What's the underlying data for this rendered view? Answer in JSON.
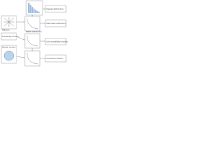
{
  "nodes": [
    {
      "label": "Degree distribution"
    },
    {
      "label": "Network"
    },
    {
      "label": "Fitted distribution"
    },
    {
      "label": "Parameter estimation"
    },
    {
      "label": "Probability of links"
    },
    {
      "label": "Link probability function"
    },
    {
      "label": "Spatial domain"
    },
    {
      "label": "Simulated network"
    }
  ]
}
